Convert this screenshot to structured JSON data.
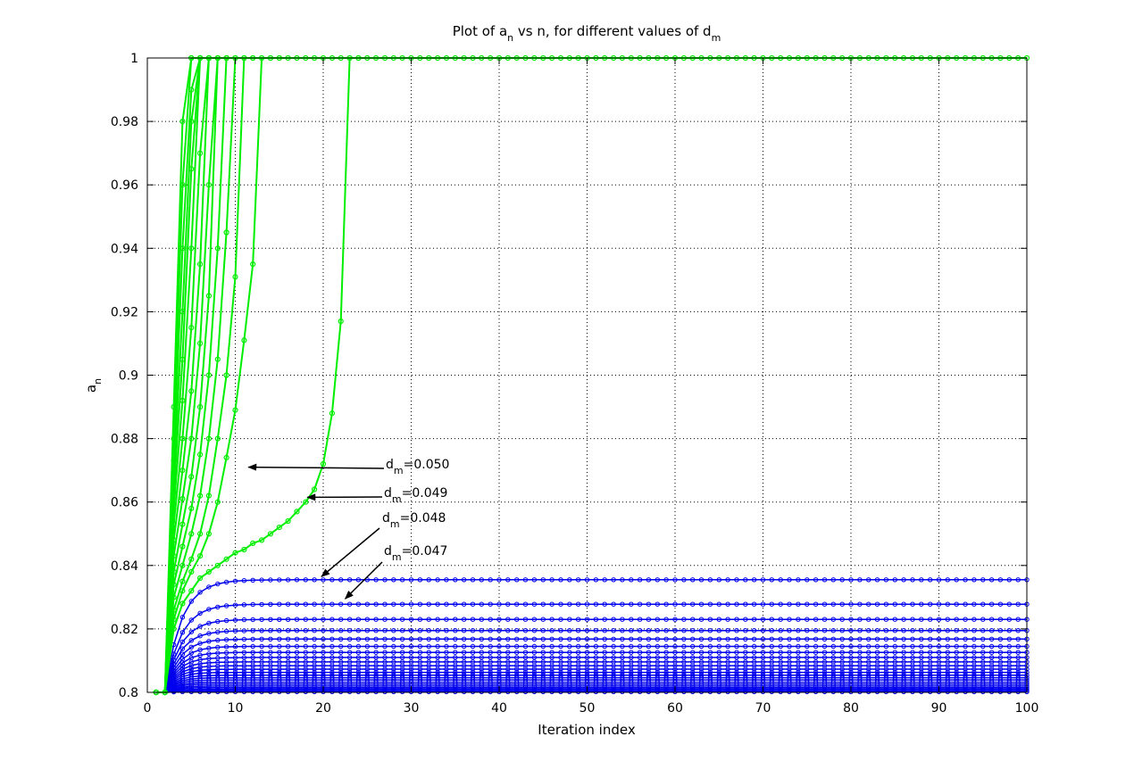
{
  "chart_data": {
    "type": "line",
    "title": {
      "prefix": "Plot of a",
      "sub1": "n",
      "middle": " vs n, for different values of d",
      "sub2": "m"
    },
    "xlabel": "Iteration index",
    "ylabel": {
      "base": "a",
      "sub": "n"
    },
    "xlim": [
      0,
      100
    ],
    "ylim": [
      0.8,
      1.0
    ],
    "xticks": [
      0,
      10,
      20,
      30,
      40,
      50,
      60,
      70,
      80,
      90,
      100
    ],
    "yticks": [
      0.8,
      0.82,
      0.84,
      0.86,
      0.88,
      0.9,
      0.92,
      0.94,
      0.96,
      0.98,
      1.0
    ],
    "grid": true,
    "colors": {
      "converging": "#00ee00",
      "saturating": "#0000ee",
      "arrow": "#000000"
    },
    "converging_curves": [
      {
        "x": [
          1,
          2,
          3,
          4,
          5,
          6,
          7,
          8,
          9,
          10,
          11,
          12,
          13,
          14,
          15,
          16,
          17,
          18,
          19,
          20,
          21,
          22,
          23,
          24
        ],
        "y": [
          0.8,
          0.8,
          0.82,
          0.828,
          0.832,
          0.836,
          0.838,
          0.84,
          0.842,
          0.844,
          0.845,
          0.847,
          0.848,
          0.85,
          0.852,
          0.854,
          0.857,
          0.86,
          0.864,
          0.872,
          0.888,
          0.917,
          1.0,
          1.0
        ]
      },
      {
        "x": [
          1,
          2,
          3,
          4,
          5,
          6,
          7,
          8,
          9,
          10,
          11,
          12,
          13,
          14,
          15
        ],
        "y": [
          0.8,
          0.8,
          0.823,
          0.832,
          0.838,
          0.843,
          0.85,
          0.86,
          0.874,
          0.889,
          0.911,
          0.935,
          1.0,
          1.0,
          1.0
        ]
      },
      {
        "x": [
          1,
          2,
          3,
          4,
          5,
          6,
          7,
          8,
          9,
          10,
          11,
          12
        ],
        "y": [
          0.8,
          0.8,
          0.826,
          0.835,
          0.842,
          0.85,
          0.862,
          0.88,
          0.9,
          0.931,
          1.0,
          1.0
        ]
      },
      {
        "x": [
          1,
          2,
          3,
          4,
          5,
          6,
          7,
          8,
          9,
          10,
          11
        ],
        "y": [
          0.8,
          0.8,
          0.83,
          0.84,
          0.85,
          0.862,
          0.88,
          0.905,
          0.945,
          1.0,
          1.0
        ]
      },
      {
        "x": [
          1,
          2,
          3,
          4,
          5,
          6,
          7,
          8,
          9,
          10
        ],
        "y": [
          0.8,
          0.8,
          0.834,
          0.846,
          0.858,
          0.875,
          0.9,
          0.94,
          1.0,
          1.0
        ]
      },
      {
        "x": [
          1,
          2,
          3,
          4,
          5,
          6,
          7,
          8,
          9
        ],
        "y": [
          0.8,
          0.8,
          0.838,
          0.853,
          0.868,
          0.89,
          0.925,
          1.0,
          1.0
        ]
      },
      {
        "x": [
          1,
          2,
          3,
          4,
          5,
          6,
          7,
          8,
          9
        ],
        "y": [
          0.8,
          0.8,
          0.843,
          0.861,
          0.88,
          0.91,
          0.96,
          1.0,
          1.0
        ]
      },
      {
        "x": [
          1,
          2,
          3,
          4,
          5,
          6,
          7,
          8
        ],
        "y": [
          0.8,
          0.8,
          0.848,
          0.87,
          0.895,
          0.935,
          1.0,
          1.0
        ]
      },
      {
        "x": [
          1,
          2,
          3,
          4,
          5,
          6,
          7,
          8
        ],
        "y": [
          0.8,
          0.8,
          0.853,
          0.88,
          0.915,
          0.97,
          1.0,
          1.0
        ]
      },
      {
        "x": [
          1,
          2,
          3,
          4,
          5,
          6,
          7
        ],
        "y": [
          0.8,
          0.8,
          0.858,
          0.892,
          0.94,
          1.0,
          1.0
        ]
      },
      {
        "x": [
          1,
          2,
          3,
          4,
          5,
          6,
          7
        ],
        "y": [
          0.8,
          0.8,
          0.863,
          0.905,
          0.965,
          1.0,
          1.0
        ]
      },
      {
        "x": [
          1,
          2,
          3,
          4,
          5,
          6
        ],
        "y": [
          0.8,
          0.8,
          0.868,
          0.92,
          0.98,
          1.0
        ]
      },
      {
        "x": [
          1,
          2,
          3,
          4,
          5,
          6
        ],
        "y": [
          0.8,
          0.8,
          0.873,
          0.94,
          0.99,
          1.0
        ]
      },
      {
        "x": [
          1,
          2,
          3,
          4,
          5,
          6
        ],
        "y": [
          0.8,
          0.8,
          0.88,
          0.96,
          1.0,
          1.0
        ]
      },
      {
        "x": [
          1,
          2,
          3,
          4,
          5
        ],
        "y": [
          0.8,
          0.8,
          0.89,
          0.98,
          1.0
        ]
      }
    ],
    "saturation_level": 1.0,
    "saturating_curves": {
      "x_start": 3,
      "x_end": 100,
      "asymptotes": [
        0.8355,
        0.8278,
        0.823,
        0.8195,
        0.8168,
        0.8145,
        0.8126,
        0.811,
        0.8096,
        0.8084,
        0.8073,
        0.8063,
        0.8054,
        0.8046,
        0.8039,
        0.8032,
        0.8026,
        0.802,
        0.8015,
        0.801,
        0.8006,
        0.8002
      ]
    },
    "annotations": [
      {
        "label_base": "d",
        "label_sub": "m",
        "label_value": "=0.050",
        "x": 11.5,
        "y": 0.871
      },
      {
        "label_base": "d",
        "label_sub": "m",
        "label_value": "=0.049",
        "x": 18.2,
        "y": 0.8615
      },
      {
        "label_base": "d",
        "label_sub": "m",
        "label_value": "=0.048",
        "x": 19.8,
        "y": 0.8365
      },
      {
        "label_base": "d",
        "label_sub": "m",
        "label_value": "=0.047",
        "x": 22.5,
        "y": 0.8295
      }
    ]
  }
}
